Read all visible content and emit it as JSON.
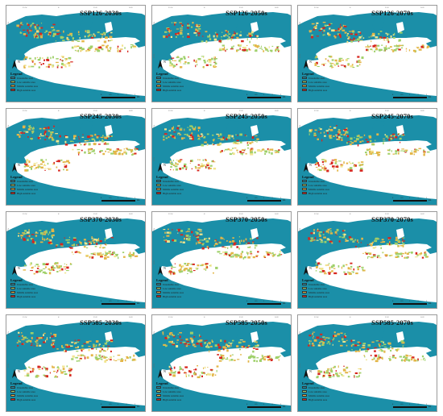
{
  "panels": [
    {
      "title": "SSP126-2030s"
    },
    {
      "title": "SSP126-2050s"
    },
    {
      "title": "SSP126-2070s"
    },
    {
      "title": "SSP245-2030s"
    },
    {
      "title": "SSP245-2050s"
    },
    {
      "title": "SSP245-2070s"
    },
    {
      "title": "SSP370-2030s"
    },
    {
      "title": "SSP370-2050s"
    },
    {
      "title": "SSP370-2070s"
    },
    {
      "title": "SSP585-2030s"
    },
    {
      "title": "SSP585-2050s"
    },
    {
      "title": "SSP585-2070s"
    }
  ],
  "legend": {
    "title": "Legend",
    "items": [
      {
        "label": "Unsuitable area",
        "color": "#1b8fa8"
      },
      {
        "label": "Low suitable area",
        "color": "#9fd06a"
      },
      {
        "label": "Middle suitable area",
        "color": "#e3b648"
      },
      {
        "label": "High suitable area",
        "color": "#d7261e"
      }
    ]
  },
  "north_label": "N",
  "scale": {
    "ticks": [
      "0",
      "0.5",
      "1",
      "2",
      "3"
    ],
    "unit": "km"
  },
  "colors": {
    "sea": "#ffffff",
    "land": "#1b8fa8",
    "border": "#9a9a9a"
  }
}
